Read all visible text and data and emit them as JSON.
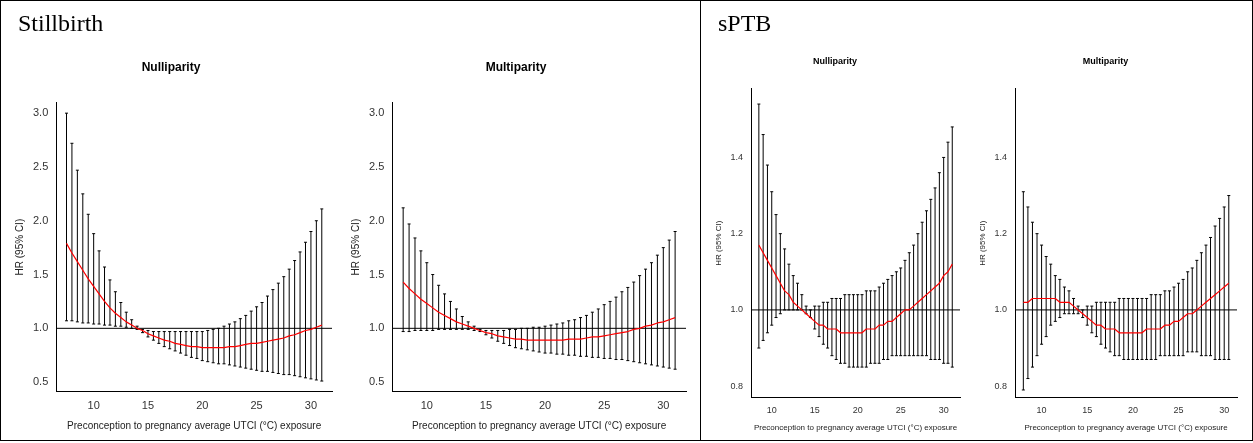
{
  "chart_data": [
    {
      "type": "line",
      "title": "Nulliparity",
      "xlabel": "Preconception to pregnancy average UTCI (°C) exposure",
      "ylabel": "HR (95% CI)",
      "annotations": [
        "Stillbirth"
      ],
      "marker": "none",
      "x": [
        7.5,
        8,
        8.5,
        9,
        9.5,
        10,
        10.5,
        11,
        11.5,
        12,
        12.5,
        13,
        13.5,
        14,
        14.5,
        15,
        15.5,
        16,
        16.5,
        17,
        17.5,
        18,
        18.5,
        19,
        19.5,
        20,
        20.5,
        21,
        21.5,
        22,
        22.5,
        23,
        23.5,
        24,
        24.5,
        25,
        25.5,
        26,
        26.5,
        27,
        27.5,
        28,
        28.5,
        29,
        29.5,
        30,
        30.5,
        31
      ],
      "series": [
        {
          "color": "#ff0000",
          "values": [
            1.79,
            1.7,
            1.62,
            1.54,
            1.46,
            1.39,
            1.32,
            1.25,
            1.19,
            1.14,
            1.1,
            1.06,
            1.03,
            1.0,
            0.98,
            0.95,
            0.93,
            0.91,
            0.89,
            0.88,
            0.86,
            0.85,
            0.84,
            0.83,
            0.83,
            0.82,
            0.82,
            0.82,
            0.82,
            0.82,
            0.83,
            0.83,
            0.84,
            0.85,
            0.86,
            0.86,
            0.87,
            0.88,
            0.89,
            0.9,
            0.91,
            0.93,
            0.94,
            0.96,
            0.98,
            0.99,
            1.01,
            1.03
          ],
          "errors": [
            [
              1.07,
              3.0
            ],
            [
              1.07,
              2.72
            ],
            [
              1.06,
              2.47
            ],
            [
              1.05,
              2.25
            ],
            [
              1.05,
              2.06
            ],
            [
              1.04,
              1.88
            ],
            [
              1.04,
              1.72
            ],
            [
              1.03,
              1.57
            ],
            [
              1.03,
              1.45
            ],
            [
              1.02,
              1.34
            ],
            [
              1.02,
              1.24
            ],
            [
              1.01,
              1.15
            ],
            [
              1.0,
              1.08
            ],
            [
              0.99,
              1.02
            ],
            [
              0.96,
              0.99
            ],
            [
              0.92,
              0.98
            ],
            [
              0.89,
              0.97
            ],
            [
              0.86,
              0.97
            ],
            [
              0.83,
              0.97
            ],
            [
              0.81,
              0.97
            ],
            [
              0.79,
              0.97
            ],
            [
              0.77,
              0.97
            ],
            [
              0.75,
              0.97
            ],
            [
              0.73,
              0.97
            ],
            [
              0.72,
              0.97
            ],
            [
              0.7,
              0.97
            ],
            [
              0.69,
              0.98
            ],
            [
              0.68,
              0.99
            ],
            [
              0.67,
              1.0
            ],
            [
              0.67,
              1.02
            ],
            [
              0.66,
              1.04
            ],
            [
              0.65,
              1.06
            ],
            [
              0.64,
              1.09
            ],
            [
              0.63,
              1.12
            ],
            [
              0.62,
              1.16
            ],
            [
              0.61,
              1.2
            ],
            [
              0.6,
              1.24
            ],
            [
              0.6,
              1.3
            ],
            [
              0.59,
              1.36
            ],
            [
              0.58,
              1.42
            ],
            [
              0.57,
              1.48
            ],
            [
              0.57,
              1.55
            ],
            [
              0.56,
              1.63
            ],
            [
              0.55,
              1.71
            ],
            [
              0.54,
              1.8
            ],
            [
              0.53,
              1.9
            ],
            [
              0.52,
              2.0
            ],
            [
              0.51,
              2.11
            ]
          ]
        }
      ],
      "ref_lines": [
        {
          "axis": "y",
          "value": 1,
          "color": "#000000"
        }
      ],
      "xlim": [
        6.56,
        31.94
      ],
      "xticks": [
        10,
        15,
        20,
        25,
        30
      ],
      "ylim": [
        0.41,
        3.1
      ],
      "yticks": [
        0.5,
        {
          "value": 1,
          "label": "1.0"
        },
        1.5,
        {
          "value": 2,
          "label": "2.0"
        },
        2.5,
        {
          "value": 3,
          "label": "3.0"
        }
      ]
    },
    {
      "type": "line",
      "title": "Multiparity",
      "xlabel": "Preconception to pregnancy average UTCI (°C) exposure",
      "ylabel": "HR (95% CI)",
      "marker": "none",
      "x": [
        8,
        8.5,
        9,
        9.5,
        10,
        10.5,
        11,
        11.5,
        12,
        12.5,
        13,
        13.5,
        14,
        14.5,
        15,
        15.5,
        16,
        16.5,
        17,
        17.5,
        18,
        18.5,
        19,
        19.5,
        20,
        20.5,
        21,
        21.5,
        22,
        22.5,
        23,
        23.5,
        24,
        24.5,
        25,
        25.5,
        26,
        26.5,
        27,
        27.5,
        28,
        28.5,
        29,
        29.5,
        30,
        30.5,
        31
      ],
      "series": [
        {
          "color": "#ff0000",
          "values": [
            1.43,
            1.37,
            1.32,
            1.27,
            1.23,
            1.19,
            1.15,
            1.12,
            1.09,
            1.06,
            1.04,
            1.02,
            1.0,
            0.98,
            0.96,
            0.95,
            0.93,
            0.92,
            0.91,
            0.9,
            0.9,
            0.89,
            0.89,
            0.89,
            0.89,
            0.89,
            0.89,
            0.89,
            0.9,
            0.9,
            0.9,
            0.91,
            0.92,
            0.92,
            0.93,
            0.94,
            0.95,
            0.96,
            0.97,
            0.99,
            1.0,
            1.02,
            1.03,
            1.05,
            1.06,
            1.08,
            1.1
          ],
          "errors": [
            [
              0.97,
              2.12
            ],
            [
              0.97,
              1.97
            ],
            [
              0.98,
              1.84
            ],
            [
              0.98,
              1.72
            ],
            [
              0.98,
              1.61
            ],
            [
              0.98,
              1.5
            ],
            [
              0.99,
              1.4
            ],
            [
              0.99,
              1.32
            ],
            [
              0.99,
              1.25
            ],
            [
              0.99,
              1.18
            ],
            [
              0.99,
              1.11
            ],
            [
              0.99,
              1.06
            ],
            [
              0.98,
              1.02
            ],
            [
              0.97,
              0.99
            ],
            [
              0.94,
              0.98
            ],
            [
              0.91,
              0.98
            ],
            [
              0.88,
              0.98
            ],
            [
              0.86,
              0.98
            ],
            [
              0.84,
              0.99
            ],
            [
              0.82,
              0.99
            ],
            [
              0.81,
              1.0
            ],
            [
              0.8,
              1.0
            ],
            [
              0.79,
              1.01
            ],
            [
              0.78,
              1.01
            ],
            [
              0.77,
              1.02
            ],
            [
              0.77,
              1.03
            ],
            [
              0.76,
              1.04
            ],
            [
              0.76,
              1.05
            ],
            [
              0.75,
              1.07
            ],
            [
              0.75,
              1.08
            ],
            [
              0.74,
              1.1
            ],
            [
              0.74,
              1.12
            ],
            [
              0.73,
              1.15
            ],
            [
              0.73,
              1.18
            ],
            [
              0.72,
              1.22
            ],
            [
              0.72,
              1.25
            ],
            [
              0.71,
              1.29
            ],
            [
              0.71,
              1.34
            ],
            [
              0.7,
              1.38
            ],
            [
              0.69,
              1.43
            ],
            [
              0.68,
              1.49
            ],
            [
              0.67,
              1.55
            ],
            [
              0.66,
              1.61
            ],
            [
              0.65,
              1.68
            ],
            [
              0.64,
              1.75
            ],
            [
              0.63,
              1.82
            ],
            [
              0.62,
              1.9
            ]
          ]
        }
      ],
      "ref_lines": [
        {
          "axis": "y",
          "value": 1,
          "color": "#000000"
        }
      ],
      "xlim": [
        7.08,
        31.92
      ],
      "xticks": [
        10,
        15,
        20,
        25,
        30
      ],
      "ylim": [
        0.41,
        3.1
      ],
      "yticks": [
        0.5,
        {
          "value": 1,
          "label": "1.0"
        },
        1.5,
        {
          "value": 2,
          "label": "2.0"
        },
        2.5,
        {
          "value": 3,
          "label": "3.0"
        }
      ]
    },
    {
      "type": "line",
      "title": "Nulliparity",
      "xlabel": "Preconception to pregnancy average UTCI (°C) exposure",
      "ylabel": "HR (95% CI)",
      "annotations": [
        "sPTB"
      ],
      "marker": "none",
      "x": [
        8.5,
        9,
        9.5,
        10,
        10.5,
        11,
        11.5,
        12,
        12.5,
        13,
        13.5,
        14,
        14.5,
        15,
        15.5,
        16,
        16.5,
        17,
        17.5,
        18,
        18.5,
        19,
        19.5,
        20,
        20.5,
        21,
        21.5,
        22,
        22.5,
        23,
        23.5,
        24,
        24.5,
        25,
        25.5,
        26,
        26.5,
        27,
        27.5,
        28,
        28.5,
        29,
        29.5,
        30,
        30.5,
        31
      ],
      "series": [
        {
          "color": "#ff0000",
          "values": [
            1.17,
            1.15,
            1.13,
            1.11,
            1.09,
            1.07,
            1.05,
            1.04,
            1.02,
            1.01,
            1.0,
            0.99,
            0.98,
            0.97,
            0.96,
            0.96,
            0.95,
            0.95,
            0.95,
            0.94,
            0.94,
            0.94,
            0.94,
            0.94,
            0.94,
            0.95,
            0.95,
            0.95,
            0.96,
            0.96,
            0.97,
            0.97,
            0.98,
            0.99,
            1.0,
            1.0,
            1.01,
            1.02,
            1.03,
            1.04,
            1.05,
            1.06,
            1.07,
            1.09,
            1.1,
            1.12
          ],
          "errors": [
            [
              0.9,
              1.54
            ],
            [
              0.92,
              1.46
            ],
            [
              0.94,
              1.38
            ],
            [
              0.96,
              1.31
            ],
            [
              0.98,
              1.25
            ],
            [
              0.99,
              1.2
            ],
            [
              1.0,
              1.16
            ],
            [
              1.0,
              1.12
            ],
            [
              1.0,
              1.09
            ],
            [
              1.0,
              1.07
            ],
            [
              1.0,
              1.04
            ],
            [
              0.99,
              1.01
            ],
            [
              0.98,
              1.0
            ],
            [
              0.95,
              1.01
            ],
            [
              0.93,
              1.01
            ],
            [
              0.91,
              1.02
            ],
            [
              0.9,
              1.02
            ],
            [
              0.88,
              1.03
            ],
            [
              0.87,
              1.03
            ],
            [
              0.86,
              1.03
            ],
            [
              0.86,
              1.04
            ],
            [
              0.85,
              1.04
            ],
            [
              0.85,
              1.04
            ],
            [
              0.85,
              1.04
            ],
            [
              0.85,
              1.04
            ],
            [
              0.85,
              1.05
            ],
            [
              0.86,
              1.05
            ],
            [
              0.86,
              1.05
            ],
            [
              0.86,
              1.06
            ],
            [
              0.87,
              1.07
            ],
            [
              0.87,
              1.08
            ],
            [
              0.88,
              1.09
            ],
            [
              0.88,
              1.1
            ],
            [
              0.88,
              1.11
            ],
            [
              0.88,
              1.13
            ],
            [
              0.88,
              1.15
            ],
            [
              0.88,
              1.17
            ],
            [
              0.88,
              1.2
            ],
            [
              0.88,
              1.23
            ],
            [
              0.88,
              1.26
            ],
            [
              0.87,
              1.29
            ],
            [
              0.87,
              1.32
            ],
            [
              0.87,
              1.36
            ],
            [
              0.86,
              1.4
            ],
            [
              0.86,
              1.44
            ],
            [
              0.85,
              1.48
            ]
          ]
        }
      ],
      "ref_lines": [
        {
          "axis": "y",
          "value": 1,
          "color": "#000000"
        }
      ],
      "xlim": [
        7.6,
        31.9
      ],
      "xticks": [
        10,
        15,
        20,
        25,
        30
      ],
      "ylim": [
        0.77,
        1.58
      ],
      "yticks": [
        0.8,
        {
          "value": 1,
          "label": "1.0"
        },
        1.2,
        1.4
      ]
    },
    {
      "type": "line",
      "title": "Multiparity",
      "xlabel": "Preconception to pregnancy average UTCI (°C) exposure",
      "ylabel": "HR (95% CI)",
      "marker": "none",
      "x": [
        8,
        8.5,
        9,
        9.5,
        10,
        10.5,
        11,
        11.5,
        12,
        12.5,
        13,
        13.5,
        14,
        14.5,
        15,
        15.5,
        16,
        16.5,
        17,
        17.5,
        18,
        18.5,
        19,
        19.5,
        20,
        20.5,
        21,
        21.5,
        22,
        22.5,
        23,
        23.5,
        24,
        24.5,
        25,
        25.5,
        26,
        26.5,
        27,
        27.5,
        28,
        28.5,
        29,
        29.5,
        30,
        30.5
      ],
      "series": [
        {
          "color": "#ff0000",
          "values": [
            1.02,
            1.02,
            1.03,
            1.03,
            1.03,
            1.03,
            1.03,
            1.03,
            1.02,
            1.02,
            1.02,
            1.01,
            1.0,
            0.99,
            0.98,
            0.97,
            0.96,
            0.96,
            0.95,
            0.95,
            0.95,
            0.94,
            0.94,
            0.94,
            0.94,
            0.94,
            0.94,
            0.95,
            0.95,
            0.95,
            0.95,
            0.96,
            0.96,
            0.97,
            0.97,
            0.98,
            0.99,
            0.99,
            1.0,
            1.01,
            1.02,
            1.03,
            1.04,
            1.05,
            1.06,
            1.07
          ],
          "errors": [
            [
              0.79,
              1.31
            ],
            [
              0.82,
              1.27
            ],
            [
              0.85,
              1.23
            ],
            [
              0.88,
              1.2
            ],
            [
              0.91,
              1.17
            ],
            [
              0.93,
              1.14
            ],
            [
              0.96,
              1.12
            ],
            [
              0.97,
              1.09
            ],
            [
              0.98,
              1.08
            ],
            [
              0.99,
              1.06
            ],
            [
              0.99,
              1.05
            ],
            [
              0.99,
              1.03
            ],
            [
              0.99,
              1.01
            ],
            [
              0.98,
              1.0
            ],
            [
              0.96,
              1.01
            ],
            [
              0.94,
              1.01
            ],
            [
              0.93,
              1.02
            ],
            [
              0.91,
              1.02
            ],
            [
              0.9,
              1.02
            ],
            [
              0.89,
              1.02
            ],
            [
              0.88,
              1.02
            ],
            [
              0.88,
              1.03
            ],
            [
              0.87,
              1.03
            ],
            [
              0.87,
              1.03
            ],
            [
              0.87,
              1.03
            ],
            [
              0.87,
              1.03
            ],
            [
              0.87,
              1.03
            ],
            [
              0.87,
              1.03
            ],
            [
              0.87,
              1.04
            ],
            [
              0.87,
              1.04
            ],
            [
              0.88,
              1.04
            ],
            [
              0.88,
              1.05
            ],
            [
              0.88,
              1.05
            ],
            [
              0.88,
              1.06
            ],
            [
              0.88,
              1.07
            ],
            [
              0.88,
              1.08
            ],
            [
              0.89,
              1.1
            ],
            [
              0.89,
              1.11
            ],
            [
              0.89,
              1.13
            ],
            [
              0.88,
              1.15
            ],
            [
              0.88,
              1.17
            ],
            [
              0.88,
              1.19
            ],
            [
              0.87,
              1.22
            ],
            [
              0.87,
              1.24
            ],
            [
              0.87,
              1.27
            ],
            [
              0.87,
              1.3
            ]
          ]
        }
      ],
      "ref_lines": [
        {
          "axis": "y",
          "value": 1,
          "color": "#000000"
        }
      ],
      "xlim": [
        7.1,
        31.4
      ],
      "xticks": [
        10,
        15,
        20,
        25,
        30
      ],
      "ylim": [
        0.77,
        1.58
      ],
      "yticks": [
        0.8,
        {
          "value": 1,
          "label": "1.0"
        },
        1.2,
        1.4
      ]
    }
  ]
}
